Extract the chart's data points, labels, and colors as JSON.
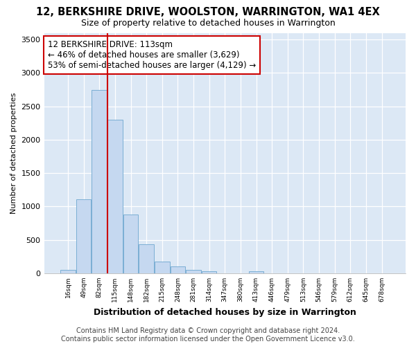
{
  "title": "12, BERKSHIRE DRIVE, WOOLSTON, WARRINGTON, WA1 4EX",
  "subtitle": "Size of property relative to detached houses in Warrington",
  "xlabel": "Distribution of detached houses by size in Warrington",
  "ylabel": "Number of detached properties",
  "bar_labels": [
    "16sqm",
    "49sqm",
    "82sqm",
    "115sqm",
    "148sqm",
    "182sqm",
    "215sqm",
    "248sqm",
    "281sqm",
    "314sqm",
    "347sqm",
    "380sqm",
    "413sqm",
    "446sqm",
    "479sqm",
    "513sqm",
    "546sqm",
    "579sqm",
    "612sqm",
    "645sqm",
    "678sqm"
  ],
  "bar_values": [
    50,
    1110,
    2750,
    2300,
    875,
    430,
    175,
    100,
    50,
    30,
    0,
    0,
    35,
    0,
    0,
    0,
    0,
    0,
    0,
    0,
    0
  ],
  "bar_color": "#c5d8f0",
  "bar_edge_color": "#7aaed4",
  "vline_color": "#cc0000",
  "annotation_text": "12 BERKSHIRE DRIVE: 113sqm\n← 46% of detached houses are smaller (3,629)\n53% of semi-detached houses are larger (4,129) →",
  "annotation_box_color": "#ffffff",
  "annotation_box_edge_color": "#cc0000",
  "ylim": [
    0,
    3600
  ],
  "yticks": [
    0,
    500,
    1000,
    1500,
    2000,
    2500,
    3000,
    3500
  ],
  "fig_background": "#ffffff",
  "plot_background": "#dce8f5",
  "grid_color": "#ffffff",
  "footer_line1": "Contains HM Land Registry data © Crown copyright and database right 2024.",
  "footer_line2": "Contains public sector information licensed under the Open Government Licence v3.0.",
  "title_fontsize": 10.5,
  "subtitle_fontsize": 9,
  "annotation_fontsize": 8.5,
  "footer_fontsize": 7,
  "ylabel_fontsize": 8,
  "xlabel_fontsize": 9
}
